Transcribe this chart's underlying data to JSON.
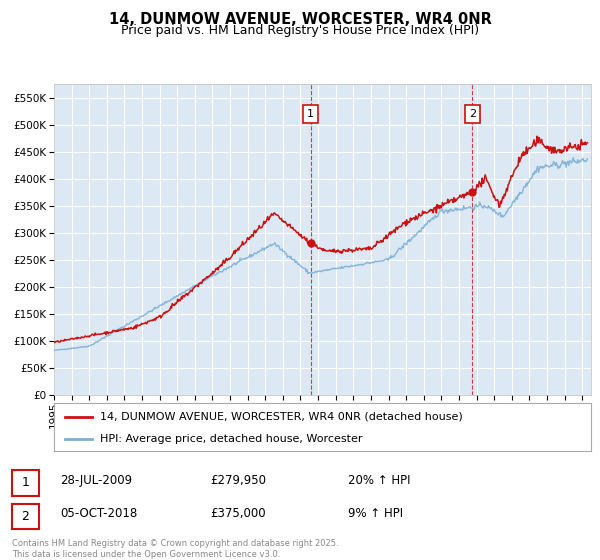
{
  "title": "14, DUNMOW AVENUE, WORCESTER, WR4 0NR",
  "subtitle": "Price paid vs. HM Land Registry's House Price Index (HPI)",
  "ylim": [
    0,
    575000
  ],
  "yticks": [
    0,
    50000,
    100000,
    150000,
    200000,
    250000,
    300000,
    350000,
    400000,
    450000,
    500000,
    550000
  ],
  "xlim_start": 1995.0,
  "xlim_end": 2025.5,
  "background_color": "#ffffff",
  "plot_bg_color": "#dde8f5",
  "grid_color": "#ffffff",
  "red_line_color": "#cc1111",
  "blue_line_color": "#7bafd4",
  "marker1_x": 2009.57,
  "marker1_y": 279950,
  "marker1_label": "1",
  "marker2_x": 2018.76,
  "marker2_y": 375000,
  "marker2_label": "2",
  "marker1_date": "28-JUL-2009",
  "marker1_price": "£279,950",
  "marker1_hpi": "20% ↑ HPI",
  "marker2_date": "05-OCT-2018",
  "marker2_price": "£375,000",
  "marker2_hpi": "9% ↑ HPI",
  "legend_line1": "14, DUNMOW AVENUE, WORCESTER, WR4 0NR (detached house)",
  "legend_line2": "HPI: Average price, detached house, Worcester",
  "footnote": "Contains HM Land Registry data © Crown copyright and database right 2025.\nThis data is licensed under the Open Government Licence v3.0.",
  "title_fontsize": 10.5,
  "subtitle_fontsize": 9,
  "tick_fontsize": 7.5,
  "legend_fontsize": 8,
  "table_fontsize": 8.5
}
